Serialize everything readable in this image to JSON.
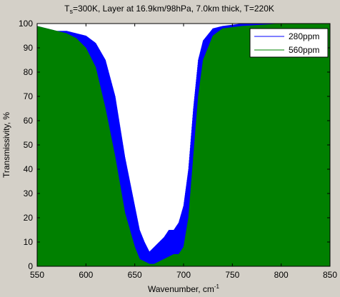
{
  "figure": {
    "title_main": "T",
    "title_sub": "s",
    "title_rest": "=300K, Layer at 16.9km/98hPa, 7.0km thick, T=220K"
  },
  "chart_data": {
    "type": "line",
    "xlabel": "Wavenumber, cm",
    "xlabel_sup": "-1",
    "ylabel": "Transmissivity, %",
    "xlim": [
      550,
      850
    ],
    "ylim": [
      0,
      100
    ],
    "xticks": [
      550,
      600,
      650,
      700,
      750,
      800,
      850
    ],
    "yticks": [
      0,
      10,
      20,
      30,
      40,
      50,
      60,
      70,
      80,
      90,
      100
    ],
    "grid": false,
    "legend_position": "top-right",
    "series": [
      {
        "name": "280ppm",
        "color": "#0000ff",
        "envelope": [
          [
            550,
            99
          ],
          [
            560,
            98
          ],
          [
            570,
            97
          ],
          [
            580,
            97
          ],
          [
            590,
            96
          ],
          [
            600,
            95
          ],
          [
            610,
            92
          ],
          [
            620,
            85
          ],
          [
            630,
            70
          ],
          [
            640,
            45
          ],
          [
            650,
            25
          ],
          [
            655,
            15
          ],
          [
            660,
            10
          ],
          [
            665,
            6
          ],
          [
            670,
            8
          ],
          [
            675,
            10
          ],
          [
            680,
            12
          ],
          [
            685,
            15
          ],
          [
            690,
            15
          ],
          [
            695,
            18
          ],
          [
            700,
            25
          ],
          [
            705,
            40
          ],
          [
            710,
            65
          ],
          [
            715,
            85
          ],
          [
            720,
            93
          ],
          [
            730,
            98
          ],
          [
            740,
            99
          ],
          [
            760,
            100
          ],
          [
            800,
            100
          ],
          [
            850,
            100
          ]
        ],
        "minimum": 0
      },
      {
        "name": "560ppm",
        "color": "#008000",
        "envelope": [
          [
            550,
            99
          ],
          [
            560,
            98
          ],
          [
            570,
            97
          ],
          [
            580,
            96
          ],
          [
            590,
            94
          ],
          [
            600,
            90
          ],
          [
            610,
            82
          ],
          [
            620,
            65
          ],
          [
            630,
            45
          ],
          [
            640,
            22
          ],
          [
            650,
            8
          ],
          [
            655,
            3
          ],
          [
            660,
            2
          ],
          [
            665,
            1
          ],
          [
            670,
            1
          ],
          [
            675,
            2
          ],
          [
            680,
            3
          ],
          [
            685,
            4
          ],
          [
            690,
            5
          ],
          [
            695,
            5
          ],
          [
            700,
            8
          ],
          [
            705,
            20
          ],
          [
            710,
            45
          ],
          [
            715,
            70
          ],
          [
            720,
            85
          ],
          [
            730,
            95
          ],
          [
            740,
            98
          ],
          [
            760,
            99
          ],
          [
            800,
            100
          ],
          [
            850,
            100
          ]
        ],
        "minimum": 0
      }
    ]
  }
}
